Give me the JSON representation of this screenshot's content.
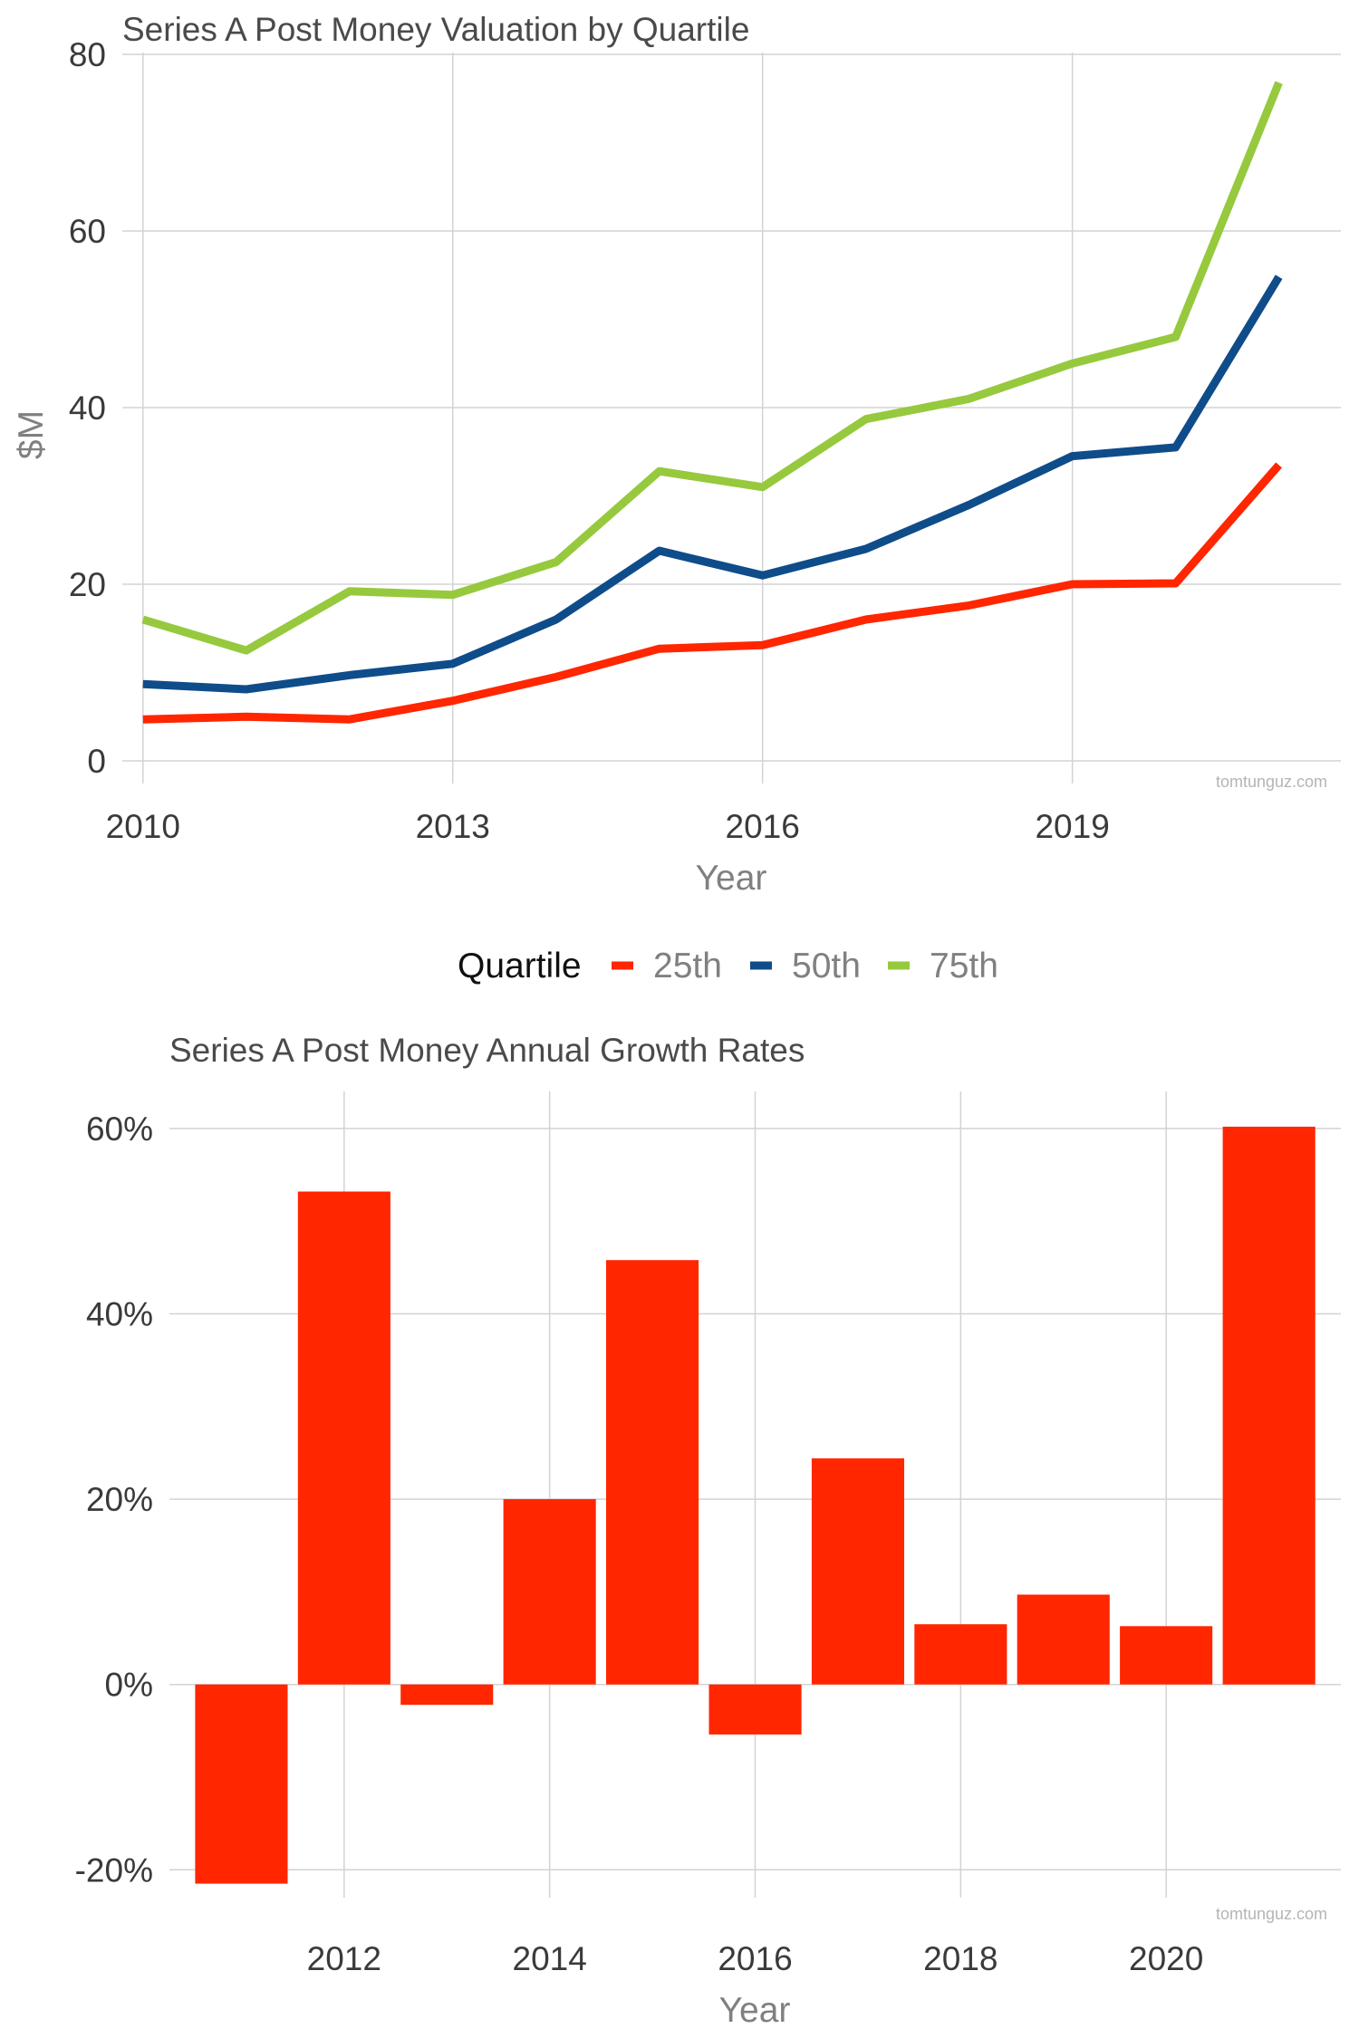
{
  "chart_data": [
    {
      "type": "line",
      "title": "Series A Post Money Valuation by Quartile",
      "xlabel": "Year",
      "ylabel": "$M",
      "xlim": [
        2009.8,
        2021.6
      ],
      "ylim": [
        0,
        80
      ],
      "x_ticks": [
        2010,
        2013,
        2016,
        2019
      ],
      "y_ticks": [
        0,
        20,
        40,
        60,
        80
      ],
      "grid": true,
      "watermark": "tomtunguz.com",
      "x": [
        2010,
        2011,
        2012,
        2013,
        2014,
        2015,
        2016,
        2017,
        2018,
        2019,
        2020,
        2021
      ],
      "series": [
        {
          "name": "25th",
          "color": "#ff2600",
          "values": [
            4.7,
            5.0,
            4.7,
            6.8,
            9.5,
            12.7,
            13.1,
            16.0,
            17.6,
            20.0,
            20.1,
            33.5
          ]
        },
        {
          "name": "50th",
          "color": "#0f4c8a",
          "values": [
            8.7,
            8.1,
            9.7,
            11.0,
            16.0,
            23.8,
            21.0,
            24.0,
            29.0,
            34.5,
            35.5,
            54.8
          ]
        },
        {
          "name": "75th",
          "color": "#96c93d",
          "values": [
            16.0,
            12.5,
            19.2,
            18.8,
            22.5,
            32.8,
            31.0,
            38.7,
            41.0,
            45.0,
            48.0,
            76.8
          ]
        }
      ],
      "legend": {
        "title": "Quartile",
        "position": "bottom"
      }
    },
    {
      "type": "bar",
      "title": "Series A Post Money Annual Growth Rates",
      "xlabel": "Year",
      "ylabel": "",
      "color": "#ff2600",
      "xlim": [
        2010.3,
        2021.7
      ],
      "ylim": [
        -23,
        64
      ],
      "x_ticks": [
        2012,
        2014,
        2016,
        2018,
        2020
      ],
      "y_ticks": [
        -20,
        0,
        20,
        40,
        60
      ],
      "y_tick_suffix": "%",
      "grid": true,
      "watermark": "tomtunguz.com",
      "categories": [
        2011,
        2012,
        2013,
        2014,
        2015,
        2016,
        2017,
        2018,
        2019,
        2020,
        2021
      ],
      "values": [
        -21.5,
        53.2,
        -2.2,
        20.0,
        45.8,
        -5.4,
        24.4,
        6.5,
        9.7,
        6.3,
        60.2
      ]
    }
  ]
}
